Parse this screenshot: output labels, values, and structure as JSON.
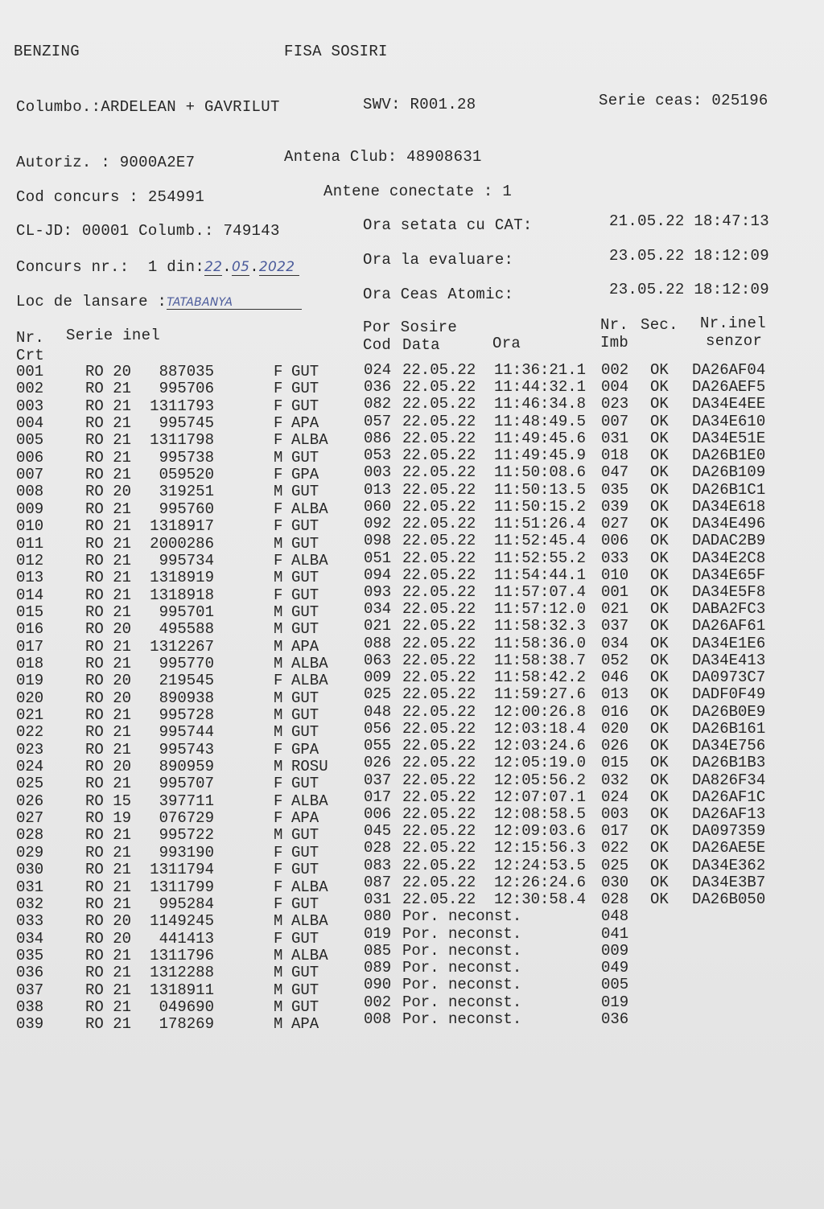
{
  "header": {
    "brand": "BENZING",
    "title": "FISA SOSIRI",
    "columbofil": "Columbo.:ARDELEAN + GAVRILUT",
    "swv": "SWV: R001.28",
    "serie_ceas": "Serie ceas: 025196",
    "autoriz": "Autoriz. : 9000A2E7",
    "antena_club": "Antena Club: 48908631",
    "cod_concurs": "Cod concurs : 254991",
    "antene_conectate": "Antene conectate : 1",
    "cl_jd": "CL-JD: 00001 Columb.: 749143",
    "ora_setata_label": "Ora setata cu CAT:",
    "ora_setata_value": "21.05.22 18:47:13",
    "concurs_label": "Concurs nr.:  1 din:",
    "concurs_day": "22",
    "concurs_month": "05",
    "concurs_year": "2022",
    "ora_evaluare_label": "Ora la evaluare:",
    "ora_evaluare_value": "23.05.22 18:12:09",
    "loc_label": "Loc de lansare :",
    "loc_value": "TATABANYA",
    "ora_ceas_label": "Ora Ceas Atomic:",
    "ora_ceas_value": "23.05.22 18:12:09"
  },
  "columns": {
    "nr": "Nr.",
    "crt": "Crt",
    "serie_inel": "Serie inel",
    "por_sosire": "Por Sosire",
    "cod": "Cod",
    "data": "Data",
    "ora": "Ora",
    "nr_imb": "Nr.",
    "imb": "Imb",
    "sec": "Sec.",
    "nr_inel": "Nr.inel",
    "senzor": "senzor"
  },
  "rows": [
    [
      "001",
      "RO 20",
      "887035",
      "F",
      "GUT",
      "024",
      "22.05.22",
      "11:36:21.1",
      "002",
      "OK",
      "DA26AF04"
    ],
    [
      "002",
      "RO 21",
      "995706",
      "F",
      "GUT",
      "036",
      "22.05.22",
      "11:44:32.1",
      "004",
      "OK",
      "DA26AEF5"
    ],
    [
      "003",
      "RO 21",
      "1311793",
      "F",
      "GUT",
      "082",
      "22.05.22",
      "11:46:34.8",
      "023",
      "OK",
      "DA34E4EE"
    ],
    [
      "004",
      "RO 21",
      "995745",
      "F",
      "APA",
      "057",
      "22.05.22",
      "11:48:49.5",
      "007",
      "OK",
      "DA34E610"
    ],
    [
      "005",
      "RO 21",
      "1311798",
      "F",
      "ALBA",
      "086",
      "22.05.22",
      "11:49:45.6",
      "031",
      "OK",
      "DA34E51E"
    ],
    [
      "006",
      "RO 21",
      "995738",
      "M",
      "GUT",
      "053",
      "22.05.22",
      "11:49:45.9",
      "018",
      "OK",
      "DA26B1E0"
    ],
    [
      "007",
      "RO 21",
      "059520",
      "F",
      "GPA",
      "003",
      "22.05.22",
      "11:50:08.6",
      "047",
      "OK",
      "DA26B109"
    ],
    [
      "008",
      "RO 20",
      "319251",
      "M",
      "GUT",
      "013",
      "22.05.22",
      "11:50:13.5",
      "035",
      "OK",
      "DA26B1C1"
    ],
    [
      "009",
      "RO 21",
      "995760",
      "F",
      "ALBA",
      "060",
      "22.05.22",
      "11:50:15.2",
      "039",
      "OK",
      "DA34E618"
    ],
    [
      "010",
      "RO 21",
      "1318917",
      "F",
      "GUT",
      "092",
      "22.05.22",
      "11:51:26.4",
      "027",
      "OK",
      "DA34E496"
    ],
    [
      "011",
      "RO 21",
      "2000286",
      "M",
      "GUT",
      "098",
      "22.05.22",
      "11:52:45.4",
      "006",
      "OK",
      "DADAC2B9"
    ],
    [
      "012",
      "RO 21",
      "995734",
      "F",
      "ALBA",
      "051",
      "22.05.22",
      "11:52:55.2",
      "033",
      "OK",
      "DA34E2C8"
    ],
    [
      "013",
      "RO 21",
      "1318919",
      "M",
      "GUT",
      "094",
      "22.05.22",
      "11:54:44.1",
      "010",
      "OK",
      "DA34E65F"
    ],
    [
      "014",
      "RO 21",
      "1318918",
      "F",
      "GUT",
      "093",
      "22.05.22",
      "11:57:07.4",
      "001",
      "OK",
      "DA34E5F8"
    ],
    [
      "015",
      "RO 21",
      "995701",
      "M",
      "GUT",
      "034",
      "22.05.22",
      "11:57:12.0",
      "021",
      "OK",
      "DABA2FC3"
    ],
    [
      "016",
      "RO 20",
      "495588",
      "M",
      "GUT",
      "021",
      "22.05.22",
      "11:58:32.3",
      "037",
      "OK",
      "DA26AF61"
    ],
    [
      "017",
      "RO 21",
      "1312267",
      "M",
      "APA",
      "088",
      "22.05.22",
      "11:58:36.0",
      "034",
      "OK",
      "DA34E1E6"
    ],
    [
      "018",
      "RO 21",
      "995770",
      "M",
      "ALBA",
      "063",
      "22.05.22",
      "11:58:38.7",
      "052",
      "OK",
      "DA34E413"
    ],
    [
      "019",
      "RO 20",
      "219545",
      "F",
      "ALBA",
      "009",
      "22.05.22",
      "11:58:42.2",
      "046",
      "OK",
      "DA0973C7"
    ],
    [
      "020",
      "RO 20",
      "890938",
      "M",
      "GUT",
      "025",
      "22.05.22",
      "11:59:27.6",
      "013",
      "OK",
      "DADF0F49"
    ],
    [
      "021",
      "RO 21",
      "995728",
      "M",
      "GUT",
      "048",
      "22.05.22",
      "12:00:26.8",
      "016",
      "OK",
      "DA26B0E9"
    ],
    [
      "022",
      "RO 21",
      "995744",
      "M",
      "GUT",
      "056",
      "22.05.22",
      "12:03:18.4",
      "020",
      "OK",
      "DA26B161"
    ],
    [
      "023",
      "RO 21",
      "995743",
      "F",
      "GPA",
      "055",
      "22.05.22",
      "12:03:24.6",
      "026",
      "OK",
      "DA34E756"
    ],
    [
      "024",
      "RO 20",
      "890959",
      "M",
      "ROSU",
      "026",
      "22.05.22",
      "12:05:19.0",
      "015",
      "OK",
      "DA26B1B3"
    ],
    [
      "025",
      "RO 21",
      "995707",
      "F",
      "GUT",
      "037",
      "22.05.22",
      "12:05:56.2",
      "032",
      "OK",
      "DA826F34"
    ],
    [
      "026",
      "RO 15",
      "397711",
      "F",
      "ALBA",
      "017",
      "22.05.22",
      "12:07:07.1",
      "024",
      "OK",
      "DA26AF1C"
    ],
    [
      "027",
      "RO 19",
      "076729",
      "F",
      "APA",
      "006",
      "22.05.22",
      "12:08:58.5",
      "003",
      "OK",
      "DA26AF13"
    ],
    [
      "028",
      "RO 21",
      "995722",
      "M",
      "GUT",
      "045",
      "22.05.22",
      "12:09:03.6",
      "017",
      "OK",
      "DA097359"
    ],
    [
      "029",
      "RO 21",
      "993190",
      "F",
      "GUT",
      "028",
      "22.05.22",
      "12:15:56.3",
      "022",
      "OK",
      "DA26AE5E"
    ],
    [
      "030",
      "RO 21",
      "1311794",
      "F",
      "GUT",
      "083",
      "22.05.22",
      "12:24:53.5",
      "025",
      "OK",
      "DA34E362"
    ],
    [
      "031",
      "RO 21",
      "1311799",
      "F",
      "ALBA",
      "087",
      "22.05.22",
      "12:26:24.6",
      "030",
      "OK",
      "DA34E3B7"
    ],
    [
      "032",
      "RO 21",
      "995284",
      "F",
      "GUT",
      "031",
      "22.05.22",
      "12:30:58.4",
      "028",
      "OK",
      "DA26B050"
    ],
    [
      "033",
      "RO 20",
      "1149245",
      "M",
      "ALBA",
      "080",
      "Por. neconst.",
      "",
      "048",
      "",
      ""
    ],
    [
      "034",
      "RO 20",
      "441413",
      "F",
      "GUT",
      "019",
      "Por. neconst.",
      "",
      "041",
      "",
      ""
    ],
    [
      "035",
      "RO 21",
      "1311796",
      "M",
      "ALBA",
      "085",
      "Por. neconst.",
      "",
      "009",
      "",
      ""
    ],
    [
      "036",
      "RO 21",
      "1312288",
      "M",
      "GUT",
      "089",
      "Por. neconst.",
      "",
      "049",
      "",
      ""
    ],
    [
      "037",
      "RO 21",
      "1318911",
      "M",
      "GUT",
      "090",
      "Por. neconst.",
      "",
      "005",
      "",
      ""
    ],
    [
      "038",
      "RO 21",
      "049690",
      "M",
      "GUT",
      "002",
      "Por. neconst.",
      "",
      "019",
      "",
      ""
    ],
    [
      "039",
      "RO 21",
      "178269",
      "M",
      "APA",
      "008",
      "Por. neconst.",
      "",
      "036",
      "",
      ""
    ]
  ]
}
